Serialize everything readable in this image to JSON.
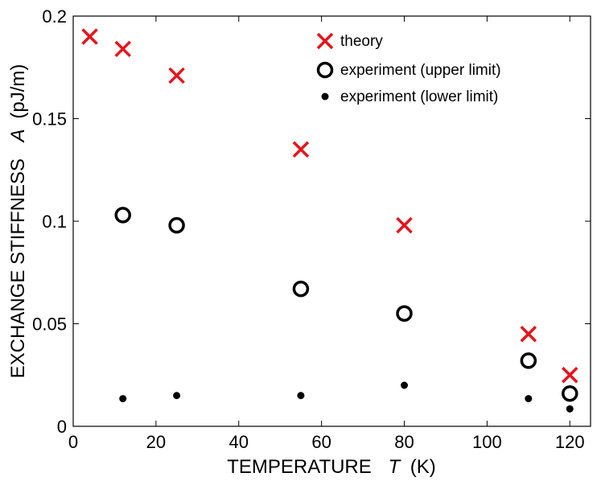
{
  "chart_data": {
    "type": "scatter",
    "title": "",
    "xlabel": {
      "prefix": "TEMPERATURE",
      "symbol": "T",
      "unit": "(K)"
    },
    "ylabel": {
      "prefix": "EXCHANGE STIFFNESS",
      "symbol": "A",
      "unit": "(pJ/m)"
    },
    "xlim": [
      0,
      125
    ],
    "ylim": [
      0,
      0.2
    ],
    "xticks": [
      0,
      20,
      40,
      60,
      80,
      100,
      120
    ],
    "xtick_labels": [
      "0",
      "20",
      "40",
      "60",
      "80",
      "100",
      "120"
    ],
    "yticks": [
      0,
      0.05,
      0.1,
      0.15,
      0.2
    ],
    "ytick_labels": [
      "0",
      "0.05",
      "0.1",
      "0.15",
      "0.2"
    ],
    "grid": false,
    "legend_position": "top-right",
    "series": [
      {
        "name": "theory",
        "marker": "x",
        "color": "#e8141b",
        "x": [
          4,
          12,
          25,
          55,
          80,
          110,
          120
        ],
        "y": [
          0.19,
          0.184,
          0.171,
          0.135,
          0.098,
          0.045,
          0.025
        ]
      },
      {
        "name": "experiment (upper limit)",
        "marker": "open-circle",
        "color": "#000000",
        "x": [
          12,
          25,
          55,
          80,
          110,
          120
        ],
        "y": [
          0.103,
          0.098,
          0.067,
          0.055,
          0.032,
          0.016
        ]
      },
      {
        "name": "experiment (lower limit)",
        "marker": "filled-dot",
        "color": "#000000",
        "x": [
          12,
          25,
          55,
          80,
          110,
          120
        ],
        "y": [
          0.0135,
          0.015,
          0.015,
          0.02,
          0.0135,
          0.0085
        ]
      }
    ]
  }
}
